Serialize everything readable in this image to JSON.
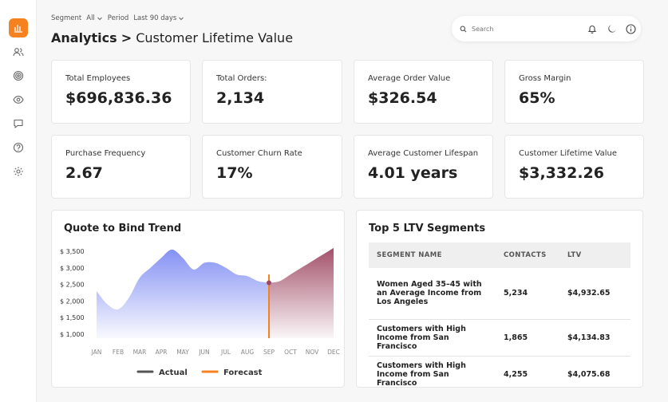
{
  "filters": {
    "segment_label": "Segment",
    "segment_value": "All",
    "period_label": "Period",
    "period_value": "Last 90 days"
  },
  "title": {
    "section": "Analytics",
    "separator": ">",
    "page": "Customer Lifetime Value"
  },
  "search": {
    "placeholder": "Search"
  },
  "kpis": [
    {
      "label": "Total Employees",
      "value": "$696,836.36"
    },
    {
      "label": "Total Orders:",
      "value": "2,134"
    },
    {
      "label": "Average Order Value",
      "value": "$326.54"
    },
    {
      "label": "Gross Margin",
      "value": "65%"
    },
    {
      "label": "Purchase Frequency",
      "value": "2.67"
    },
    {
      "label": "Customer Churn Rate",
      "value": "17%"
    },
    {
      "label": "Average Customer Lifespan",
      "value": "4.01 years"
    },
    {
      "label": "Customer Lifetime Value",
      "value": "$3,332.26"
    }
  ],
  "trend": {
    "title": "Quote to Bind Trend",
    "legend_actual": "Actual",
    "legend_forecast": "Forecast"
  },
  "chart_data": {
    "type": "area",
    "title": "Quote to Bind Trend",
    "categories": [
      "JAN",
      "FEB",
      "MAR",
      "APR",
      "MAY",
      "JUN",
      "JUL",
      "AUG",
      "SEP",
      "OCT",
      "NOV",
      "DEC"
    ],
    "y_ticks": [
      "$ 3,500",
      "$ 3,000",
      "$ 2,500",
      "$ 2,000",
      "$ 1,500",
      "$ 1,000"
    ],
    "ylim": [
      1000,
      3500
    ],
    "series": [
      {
        "name": "Actual",
        "x": [
          1,
          1.5,
          2,
          2.5,
          3,
          3.5,
          4,
          4.5,
          5,
          5.5,
          6,
          6.5,
          7,
          7.5,
          8,
          8.5,
          9
        ],
        "values": [
          2300,
          1900,
          1750,
          2100,
          2700,
          3000,
          3300,
          3550,
          3300,
          2950,
          3150,
          3150,
          3000,
          2800,
          2750,
          2600,
          2550
        ]
      },
      {
        "name": "Forecast",
        "x": [
          9,
          9.5,
          10,
          10.5,
          11,
          11.5,
          12
        ],
        "values": [
          2550,
          2600,
          2800,
          3000,
          3200,
          3400,
          3600
        ]
      }
    ],
    "marker_x": 9,
    "colors": {
      "actual": "#7f8cf3",
      "forecast": "#9e4863",
      "marker": "#f5811f",
      "actual_legend": "#555555"
    }
  },
  "segments": {
    "title": "Top 5 LTV Segments",
    "columns": [
      "SEGMENT NAME",
      "CONTACTS",
      "LTV"
    ],
    "rows": [
      {
        "name": "Women Aged 35–45 with an Average Income from Los Angeles",
        "contacts": "5,234",
        "ltv": "$4,932.65"
      },
      {
        "name": "Customers with High Income from San Francisco",
        "contacts": "1,865",
        "ltv": "$4,134.83"
      },
      {
        "name": "Customers with High Income from San Francisco",
        "contacts": "4,255",
        "ltv": "$4,075.68"
      }
    ]
  },
  "colors": {
    "brand": "#f5811f"
  }
}
